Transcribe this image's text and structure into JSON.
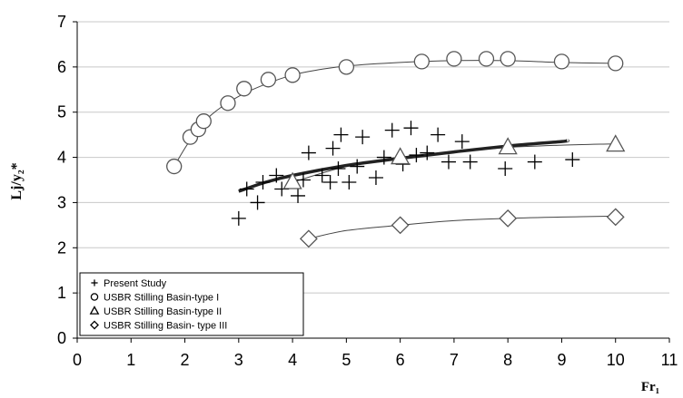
{
  "chart_data": {
    "type": "scatter",
    "xlabel": "Fr₁",
    "ylabel": "Lj/y₂*",
    "xlim": [
      0,
      11
    ],
    "ylim": [
      0,
      7
    ],
    "x_ticks": [
      "0",
      "1",
      "2",
      "3",
      "4",
      "5",
      "6",
      "7",
      "8",
      "9",
      "10",
      "11"
    ],
    "y_ticks": [
      "0",
      "1",
      "2",
      "3",
      "4",
      "5",
      "6",
      "7"
    ],
    "grid": "horizontal",
    "legend_position": "bottom-left",
    "series": [
      {
        "name": "Present Study",
        "marker": "plus",
        "color": "#000000",
        "points": [
          [
            3.0,
            2.65
          ],
          [
            3.15,
            3.3
          ],
          [
            3.35,
            3.0
          ],
          [
            3.45,
            3.45
          ],
          [
            3.7,
            3.6
          ],
          [
            3.8,
            3.3
          ],
          [
            4.1,
            3.15
          ],
          [
            4.2,
            3.5
          ],
          [
            4.3,
            4.1
          ],
          [
            4.55,
            3.6
          ],
          [
            4.7,
            3.45
          ],
          [
            4.75,
            4.2
          ],
          [
            4.85,
            3.75
          ],
          [
            4.9,
            4.5
          ],
          [
            5.05,
            3.45
          ],
          [
            5.2,
            3.8
          ],
          [
            5.3,
            4.45
          ],
          [
            5.55,
            3.55
          ],
          [
            5.7,
            4.0
          ],
          [
            5.85,
            4.6
          ],
          [
            6.05,
            3.85
          ],
          [
            6.2,
            4.65
          ],
          [
            6.3,
            4.05
          ],
          [
            6.5,
            4.1
          ],
          [
            6.7,
            4.5
          ],
          [
            6.9,
            3.9
          ],
          [
            7.15,
            4.35
          ],
          [
            7.3,
            3.9
          ],
          [
            7.95,
            3.75
          ],
          [
            8.5,
            3.9
          ],
          [
            9.2,
            3.95
          ]
        ]
      },
      {
        "name": "USBR Stilling Basin-type I",
        "marker": "circle",
        "color": "#555555",
        "points": [
          [
            1.8,
            3.8
          ],
          [
            2.1,
            4.45
          ],
          [
            2.25,
            4.62
          ],
          [
            2.35,
            4.8
          ],
          [
            2.8,
            5.2
          ],
          [
            3.1,
            5.52
          ],
          [
            3.55,
            5.72
          ],
          [
            4.0,
            5.82
          ],
          [
            5.0,
            6.0
          ],
          [
            6.4,
            6.12
          ],
          [
            7.0,
            6.18
          ],
          [
            7.6,
            6.18
          ],
          [
            8.0,
            6.18
          ],
          [
            9.0,
            6.12
          ],
          [
            10.0,
            6.08
          ]
        ]
      },
      {
        "name": "USBR Stilling Basin-type II",
        "marker": "triangle",
        "color": "#555555",
        "points": [
          [
            4.0,
            3.45
          ],
          [
            6.0,
            4.0
          ],
          [
            8.0,
            4.22
          ],
          [
            10.0,
            4.28
          ]
        ]
      },
      {
        "name": "USBR Stilling Basin- type III",
        "marker": "diamond",
        "color": "#555555",
        "points": [
          [
            4.3,
            2.2
          ],
          [
            6.0,
            2.5
          ],
          [
            8.0,
            2.65
          ],
          [
            10.0,
            2.68
          ]
        ]
      }
    ],
    "curves": [
      {
        "for": "USBR Stilling Basin-type I",
        "style": "thin",
        "points": [
          [
            1.8,
            3.8
          ],
          [
            2.0,
            4.2
          ],
          [
            2.2,
            4.55
          ],
          [
            2.5,
            4.95
          ],
          [
            3.0,
            5.35
          ],
          [
            3.5,
            5.62
          ],
          [
            4.0,
            5.82
          ],
          [
            4.5,
            5.94
          ],
          [
            5.0,
            6.02
          ],
          [
            6.0,
            6.1
          ],
          [
            7.0,
            6.14
          ],
          [
            8.0,
            6.14
          ],
          [
            9.0,
            6.1
          ],
          [
            10.0,
            6.08
          ]
        ]
      },
      {
        "for": "USBR Stilling Basin-type II",
        "style": "thin",
        "points": [
          [
            4.0,
            3.45
          ],
          [
            5.0,
            3.8
          ],
          [
            6.0,
            4.0
          ],
          [
            7.0,
            4.12
          ],
          [
            8.0,
            4.22
          ],
          [
            9.0,
            4.27
          ],
          [
            10.0,
            4.3
          ]
        ]
      },
      {
        "for": "USBR Stilling Basin- type III",
        "style": "thin",
        "points": [
          [
            4.3,
            2.2
          ],
          [
            5.0,
            2.38
          ],
          [
            6.0,
            2.5
          ],
          [
            7.0,
            2.6
          ],
          [
            8.0,
            2.65
          ],
          [
            9.0,
            2.68
          ],
          [
            10.0,
            2.7
          ]
        ]
      },
      {
        "for": "Present Study",
        "style": "thick",
        "points": [
          [
            3.0,
            3.25
          ],
          [
            3.5,
            3.45
          ],
          [
            4.0,
            3.6
          ],
          [
            5.0,
            3.82
          ],
          [
            6.0,
            3.98
          ],
          [
            7.0,
            4.12
          ],
          [
            8.0,
            4.25
          ],
          [
            9.0,
            4.35
          ],
          [
            9.1,
            4.37
          ]
        ]
      }
    ]
  }
}
